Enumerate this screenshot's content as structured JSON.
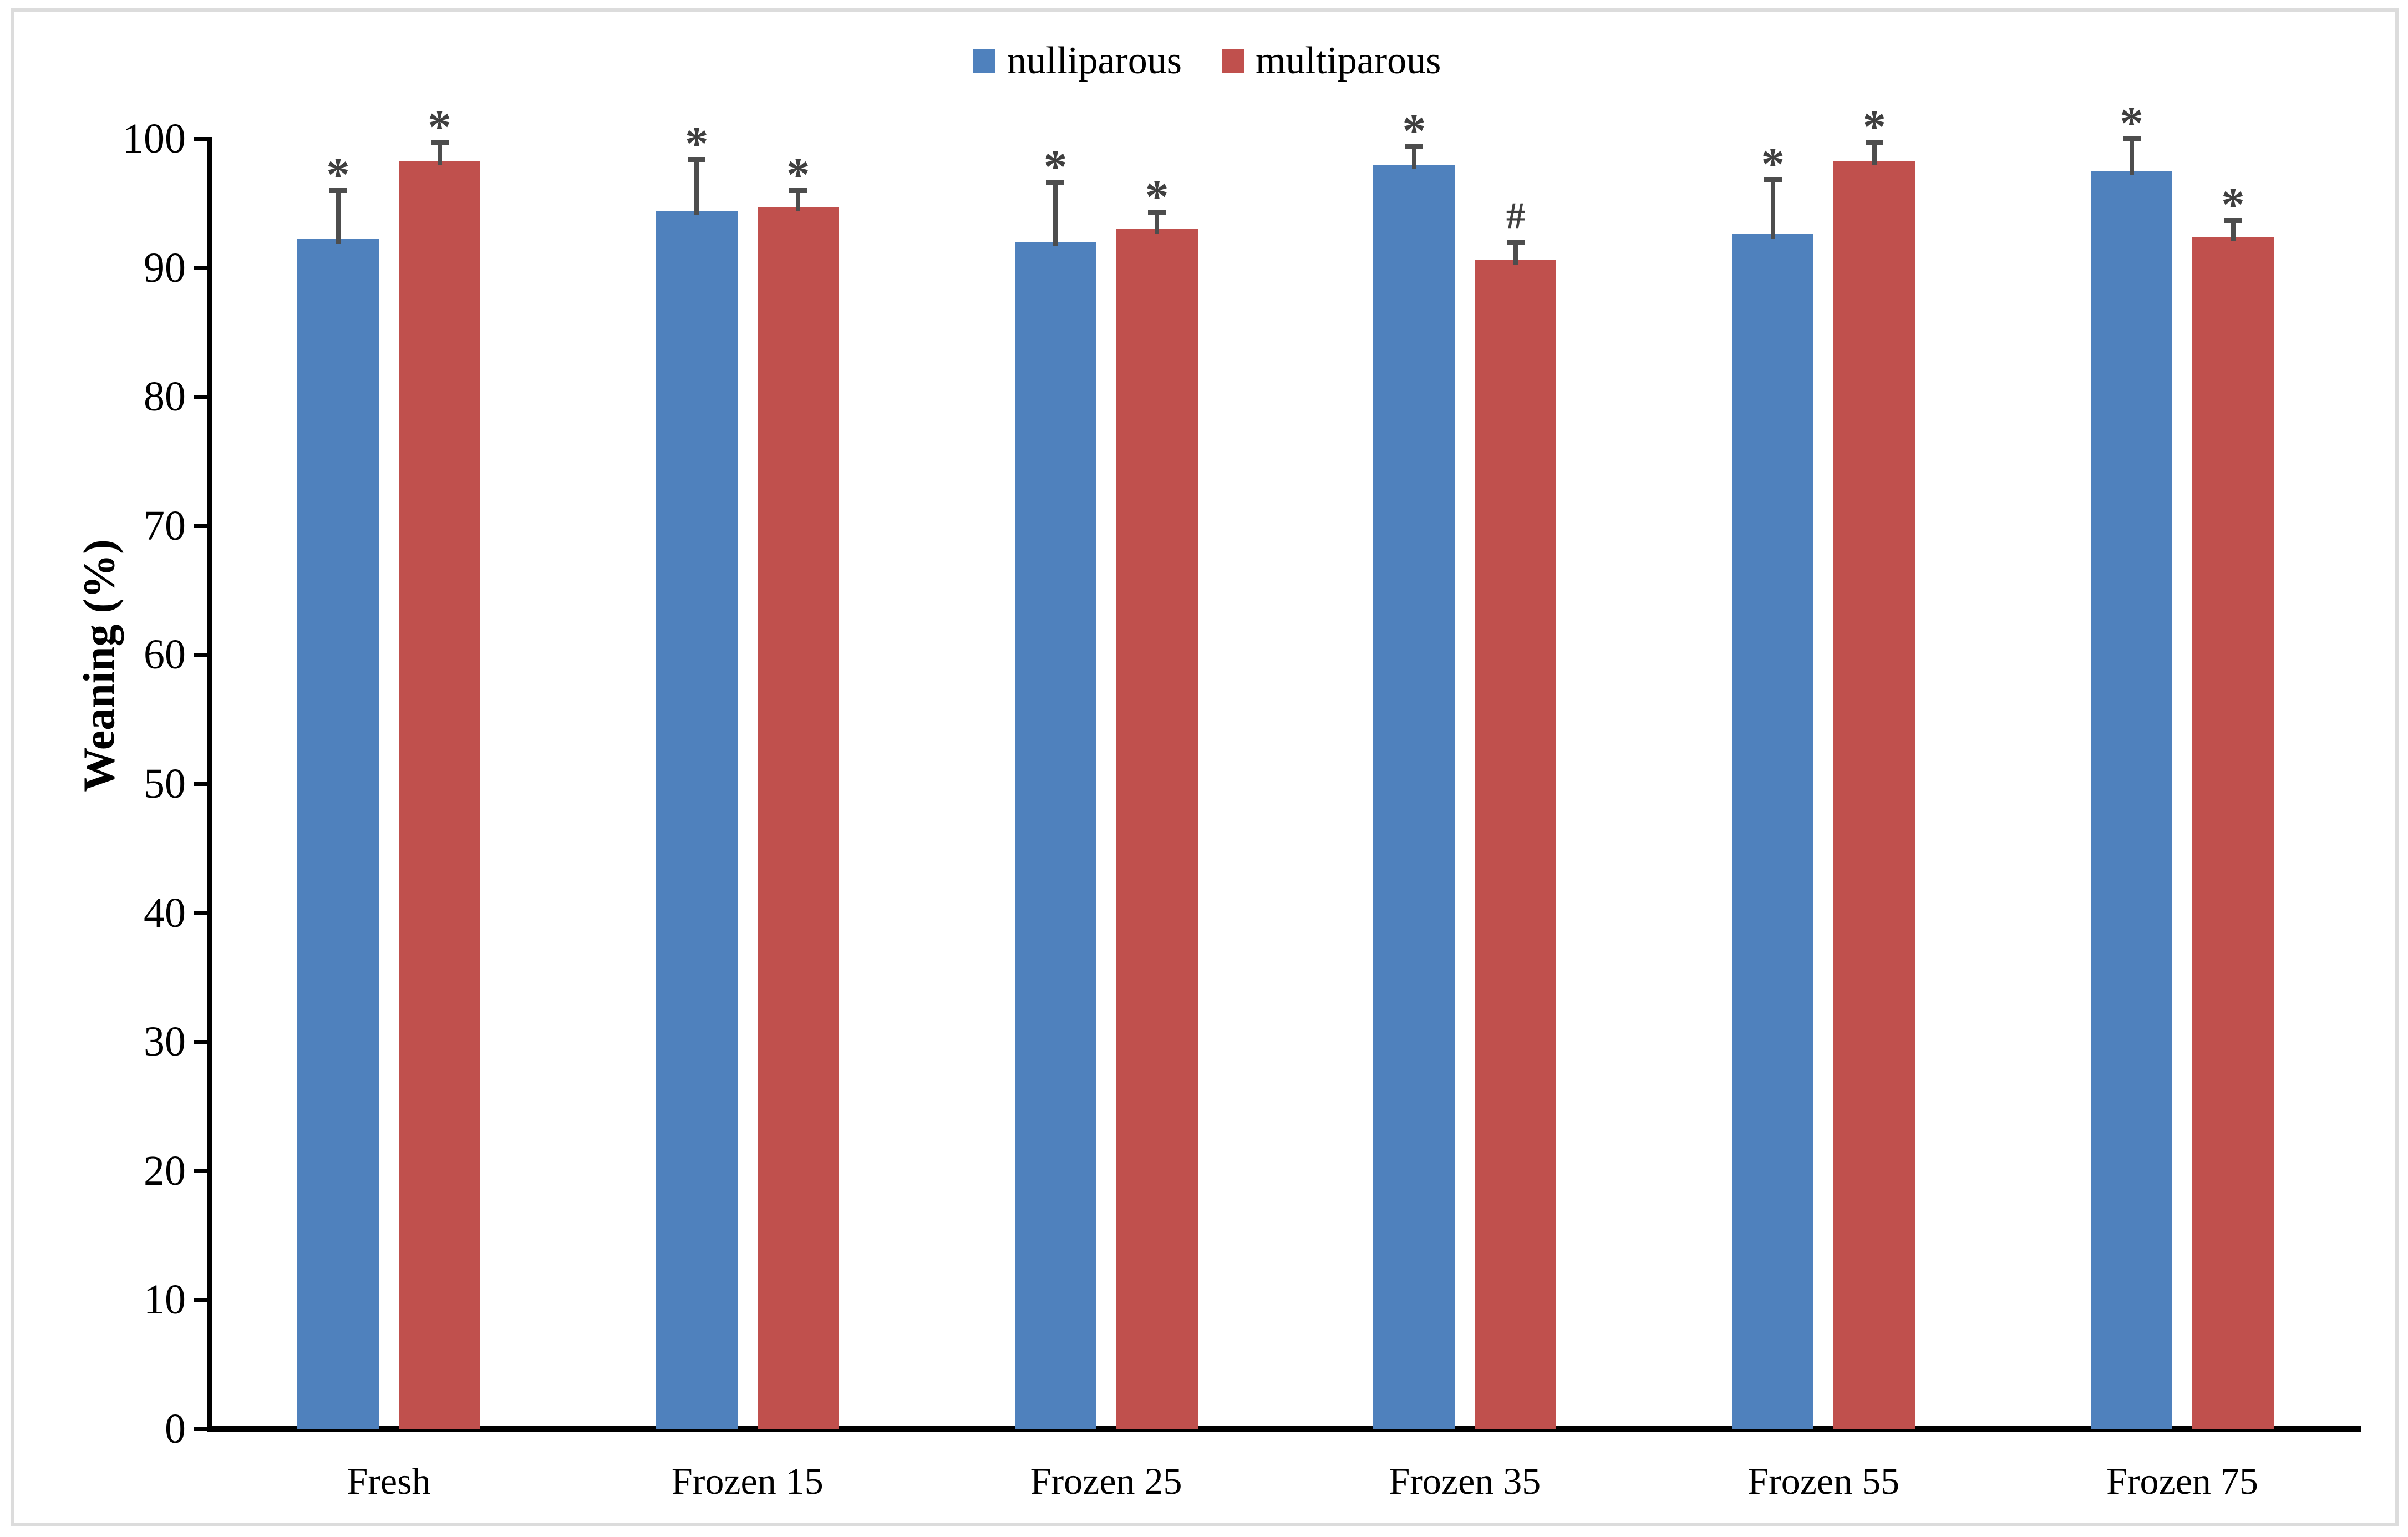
{
  "figure": {
    "background_color": "#ffffff",
    "border_color": "#dcdcdc"
  },
  "legend": {
    "position": "top-center",
    "items": [
      {
        "label": "nulliparous",
        "color": "#4F81BD"
      },
      {
        "label": "multiparous",
        "color": "#C0504D"
      }
    ]
  },
  "chart_data": {
    "type": "bar",
    "title": "",
    "xlabel": "",
    "ylabel": "Weaning (%)",
    "ylim": [
      0,
      100
    ],
    "yticks": [
      0,
      10,
      20,
      30,
      40,
      50,
      60,
      70,
      80,
      90,
      100
    ],
    "grid": false,
    "legend_position": "top-center",
    "error_bar_color": "#4d4d4d",
    "annotation_color": "#3f3f3f",
    "categories": [
      "Fresh",
      "Frozen 15",
      "Frozen 25",
      "Frozen 35",
      "Frozen 55",
      "Frozen 75"
    ],
    "series": [
      {
        "name": "nulliparous",
        "color": "#4F81BD",
        "values": [
          92.2,
          94.4,
          92.0,
          98.0,
          92.6,
          97.5
        ],
        "errors": [
          3.8,
          4.0,
          4.6,
          1.4,
          4.2,
          2.5
        ],
        "annotations": [
          "*",
          "*",
          "*",
          "*",
          "*",
          "*"
        ]
      },
      {
        "name": "multiparous",
        "color": "#C0504D",
        "values": [
          98.3,
          94.7,
          93.0,
          90.6,
          98.3,
          92.4
        ],
        "errors": [
          1.4,
          1.3,
          1.3,
          1.4,
          1.4,
          1.3
        ],
        "annotations": [
          "*",
          "*",
          "*",
          "#",
          "*",
          "*"
        ]
      }
    ]
  }
}
